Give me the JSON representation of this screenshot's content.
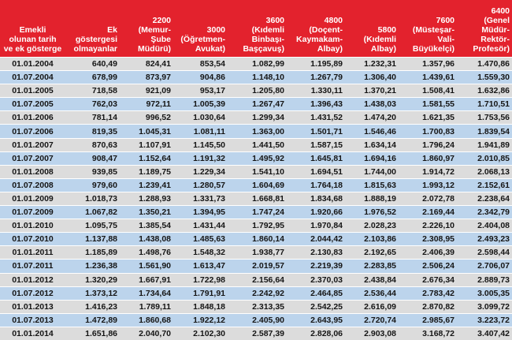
{
  "headers": [
    "Emekli\nolunan tarih\nve ek gösterge",
    "Ek\ngöstergesi\nolmayanlar",
    "2200\n(Memur-\nŞube Müdürü)",
    "3000\n(Öğretmen-\nAvukat)",
    "3600\n(Kıdemli\nBinbaşı-\nBaşçavuş)",
    "4800\n(Doçent-\nKaymakam-\nAlbay)",
    "5800\n(Kıdemli\nAlbay)",
    "7600\n(Müsteşar-\nVali-\nBüyükelçi)",
    "6400\n(Genel Müdür-\nRektör-\nProfesör)"
  ],
  "rows": [
    [
      "01.01.2004",
      "640,49",
      "824,41",
      "853,54",
      "1.082,99",
      "1.195,89",
      "1.232,31",
      "1.357,96",
      "1.470,86"
    ],
    [
      "01.07.2004",
      "678,99",
      "873,97",
      "904,86",
      "1.148,10",
      "1.267,79",
      "1.306,40",
      "1.439,61",
      "1.559,30"
    ],
    [
      "01.01.2005",
      "718,58",
      "921,09",
      "953,17",
      "1.205,80",
      "1.330,11",
      "1.370,21",
      "1.508,41",
      "1.632,86"
    ],
    [
      "01.07.2005",
      "762,03",
      "972,11",
      "1.005,39",
      "1.267,47",
      "1.396,43",
      "1.438,03",
      "1.581,55",
      "1.710,51"
    ],
    [
      "01.01.2006",
      "781,14",
      "996,52",
      "1.030,64",
      "1.299,34",
      "1.431,52",
      "1.474,20",
      "1.621,35",
      "1.753,56"
    ],
    [
      "01.07.2006",
      "819,35",
      "1.045,31",
      "1.081,11",
      "1.363,00",
      "1.501,71",
      "1.546,46",
      "1.700,83",
      "1.839,54"
    ],
    [
      "01.01.2007",
      "870,63",
      "1.107,91",
      "1.145,50",
      "1.441,50",
      "1.587,15",
      "1.634,14",
      "1.796,24",
      "1.941,89"
    ],
    [
      "01.07.2007",
      "908,47",
      "1.152,64",
      "1.191,32",
      "1.495,92",
      "1.645,81",
      "1.694,16",
      "1.860,97",
      "2.010,85"
    ],
    [
      "01.01.2008",
      "939,85",
      "1.189,75",
      "1.229,34",
      "1.541,10",
      "1.694,51",
      "1.744,00",
      "1.914,72",
      "2.068,13"
    ],
    [
      "01.07.2008",
      "979,60",
      "1.239,41",
      "1.280,57",
      "1.604,69",
      "1.764,18",
      "1.815,63",
      "1.993,12",
      "2.152,61"
    ],
    [
      "01.01.2009",
      "1.018,73",
      "1.288,93",
      "1.331,73",
      "1.668,81",
      "1.834,68",
      "1.888,19",
      "2.072,78",
      "2.238,64"
    ],
    [
      "01.07.2009",
      "1.067,82",
      "1.350,21",
      "1.394,95",
      "1.747,24",
      "1.920,66",
      "1.976,52",
      "2.169,44",
      "2.342,79"
    ],
    [
      "01.01.2010",
      "1.095,75",
      "1.385,54",
      "1.431,44",
      "1.792,95",
      "1.970,84",
      "2.028,23",
      "2.226,10",
      "2.404,08"
    ],
    [
      "01.07.2010",
      "1.137,88",
      "1.438,08",
      "1.485,63",
      "1.860,14",
      "2.044,42",
      "2.103,86",
      "2.308,95",
      "2.493,23"
    ],
    [
      "01.01.2011",
      "1.185,89",
      "1.498,76",
      "1.548,32",
      "1.938,77",
      "2.130,83",
      "2.192,65",
      "2.406,39",
      "2.598,44"
    ],
    [
      "01.07.2011",
      "1.236,38",
      "1.561,90",
      "1.613,47",
      "2.019,57",
      "2.219,39",
      "2.283,85",
      "2.506,24",
      "2.706,07"
    ],
    [
      "01.01.2012",
      "1.320,29",
      "1.667,91",
      "1.722,98",
      "2.156,64",
      "2.370,03",
      "2.438,84",
      "2.676,34",
      "2.889,73"
    ],
    [
      "01.07.2012",
      "1.373,12",
      "1.734,64",
      "1.791,91",
      "2.242,92",
      "2.464,85",
      "2.536,44",
      "2.783,42",
      "3.005,35"
    ],
    [
      "01.01.2013",
      "1.416,23",
      "1.789,11",
      "1.848,18",
      "2.313,35",
      "2.542,25",
      "2.616,09",
      "2.870,82",
      "3.099,72"
    ],
    [
      "01.07.2013",
      "1.472,89",
      "1.860,68",
      "1.922,12",
      "2.405,90",
      "2.643,95",
      "2.720,74",
      "2.985,67",
      "3.223,72"
    ],
    [
      "01.01.2014",
      "1.651,86",
      "2.040,70",
      "2.102,30",
      "2.587,39",
      "2.828,06",
      "2.903,08",
      "3.168,72",
      "3.407,42"
    ]
  ]
}
